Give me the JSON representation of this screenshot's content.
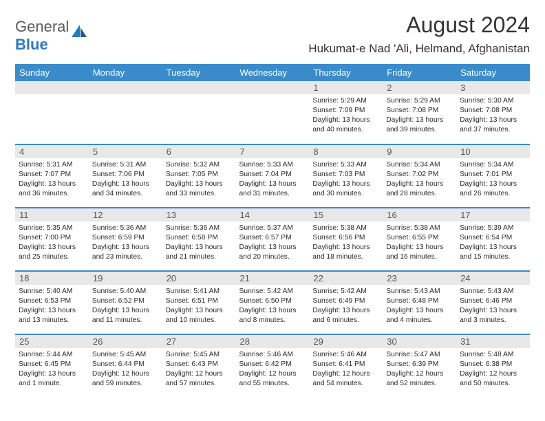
{
  "logo": {
    "text1": "General",
    "text2": "Blue"
  },
  "title": "August 2024",
  "location": "Hukumat-e Nad 'Ali, Helmand, Afghanistan",
  "colors": {
    "header_bg": "#3a8bc9",
    "header_text": "#ffffff",
    "day_num_bg": "#e8e8e8",
    "day_num_text": "#555555",
    "border": "#3a8bc9",
    "body_text": "#2a2a2a",
    "logo_gray": "#5a5a5a",
    "logo_blue": "#2a7abf"
  },
  "weekdays": [
    "Sunday",
    "Monday",
    "Tuesday",
    "Wednesday",
    "Thursday",
    "Friday",
    "Saturday"
  ],
  "weeks": [
    [
      null,
      null,
      null,
      null,
      {
        "n": "1",
        "sr": "5:29 AM",
        "ss": "7:09 PM",
        "dl": "13 hours and 40 minutes."
      },
      {
        "n": "2",
        "sr": "5:29 AM",
        "ss": "7:08 PM",
        "dl": "13 hours and 39 minutes."
      },
      {
        "n": "3",
        "sr": "5:30 AM",
        "ss": "7:08 PM",
        "dl": "13 hours and 37 minutes."
      }
    ],
    [
      {
        "n": "4",
        "sr": "5:31 AM",
        "ss": "7:07 PM",
        "dl": "13 hours and 36 minutes."
      },
      {
        "n": "5",
        "sr": "5:31 AM",
        "ss": "7:06 PM",
        "dl": "13 hours and 34 minutes."
      },
      {
        "n": "6",
        "sr": "5:32 AM",
        "ss": "7:05 PM",
        "dl": "13 hours and 33 minutes."
      },
      {
        "n": "7",
        "sr": "5:33 AM",
        "ss": "7:04 PM",
        "dl": "13 hours and 31 minutes."
      },
      {
        "n": "8",
        "sr": "5:33 AM",
        "ss": "7:03 PM",
        "dl": "13 hours and 30 minutes."
      },
      {
        "n": "9",
        "sr": "5:34 AM",
        "ss": "7:02 PM",
        "dl": "13 hours and 28 minutes."
      },
      {
        "n": "10",
        "sr": "5:34 AM",
        "ss": "7:01 PM",
        "dl": "13 hours and 26 minutes."
      }
    ],
    [
      {
        "n": "11",
        "sr": "5:35 AM",
        "ss": "7:00 PM",
        "dl": "13 hours and 25 minutes."
      },
      {
        "n": "12",
        "sr": "5:36 AM",
        "ss": "6:59 PM",
        "dl": "13 hours and 23 minutes."
      },
      {
        "n": "13",
        "sr": "5:36 AM",
        "ss": "6:58 PM",
        "dl": "13 hours and 21 minutes."
      },
      {
        "n": "14",
        "sr": "5:37 AM",
        "ss": "6:57 PM",
        "dl": "13 hours and 20 minutes."
      },
      {
        "n": "15",
        "sr": "5:38 AM",
        "ss": "6:56 PM",
        "dl": "13 hours and 18 minutes."
      },
      {
        "n": "16",
        "sr": "5:38 AM",
        "ss": "6:55 PM",
        "dl": "13 hours and 16 minutes."
      },
      {
        "n": "17",
        "sr": "5:39 AM",
        "ss": "6:54 PM",
        "dl": "13 hours and 15 minutes."
      }
    ],
    [
      {
        "n": "18",
        "sr": "5:40 AM",
        "ss": "6:53 PM",
        "dl": "13 hours and 13 minutes."
      },
      {
        "n": "19",
        "sr": "5:40 AM",
        "ss": "6:52 PM",
        "dl": "13 hours and 11 minutes."
      },
      {
        "n": "20",
        "sr": "5:41 AM",
        "ss": "6:51 PM",
        "dl": "13 hours and 10 minutes."
      },
      {
        "n": "21",
        "sr": "5:42 AM",
        "ss": "6:50 PM",
        "dl": "13 hours and 8 minutes."
      },
      {
        "n": "22",
        "sr": "5:42 AM",
        "ss": "6:49 PM",
        "dl": "13 hours and 6 minutes."
      },
      {
        "n": "23",
        "sr": "5:43 AM",
        "ss": "6:48 PM",
        "dl": "13 hours and 4 minutes."
      },
      {
        "n": "24",
        "sr": "5:43 AM",
        "ss": "6:46 PM",
        "dl": "13 hours and 3 minutes."
      }
    ],
    [
      {
        "n": "25",
        "sr": "5:44 AM",
        "ss": "6:45 PM",
        "dl": "13 hours and 1 minute."
      },
      {
        "n": "26",
        "sr": "5:45 AM",
        "ss": "6:44 PM",
        "dl": "12 hours and 59 minutes."
      },
      {
        "n": "27",
        "sr": "5:45 AM",
        "ss": "6:43 PM",
        "dl": "12 hours and 57 minutes."
      },
      {
        "n": "28",
        "sr": "5:46 AM",
        "ss": "6:42 PM",
        "dl": "12 hours and 55 minutes."
      },
      {
        "n": "29",
        "sr": "5:46 AM",
        "ss": "6:41 PM",
        "dl": "12 hours and 54 minutes."
      },
      {
        "n": "30",
        "sr": "5:47 AM",
        "ss": "6:39 PM",
        "dl": "12 hours and 52 minutes."
      },
      {
        "n": "31",
        "sr": "5:48 AM",
        "ss": "6:38 PM",
        "dl": "12 hours and 50 minutes."
      }
    ]
  ],
  "labels": {
    "sunrise": "Sunrise:",
    "sunset": "Sunset:",
    "daylight": "Daylight:"
  }
}
